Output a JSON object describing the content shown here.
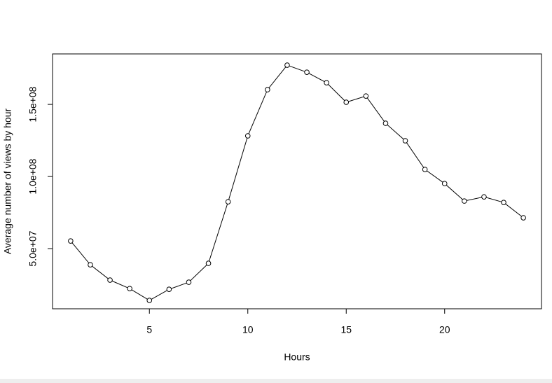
{
  "chart_data": {
    "type": "line",
    "xlabel": "Hours",
    "ylabel": "Average number of views by hour",
    "x": [
      1,
      2,
      3,
      4,
      5,
      6,
      7,
      8,
      9,
      10,
      11,
      12,
      13,
      14,
      15,
      16,
      17,
      18,
      19,
      20,
      21,
      22,
      23,
      24
    ],
    "values": [
      55300000,
      38800000,
      28200000,
      22300000,
      14100000,
      21800000,
      26700000,
      39800000,
      82500000,
      128200000,
      160200000,
      177200000,
      172300000,
      165000000,
      151500000,
      155800000,
      136900000,
      124800000,
      104900000,
      95100000,
      83000000,
      85900000,
      82000000,
      71400000
    ],
    "color": "#000000",
    "xlim": [
      0.08,
      24.92
    ],
    "xticks": [
      5,
      10,
      15,
      20
    ],
    "ylim": [
      8300000,
      185000000
    ],
    "yticks": [
      {
        "value": 50000000,
        "label": "5.0e+07"
      },
      {
        "value": 100000000,
        "label": "1.0e+08"
      },
      {
        "value": 150000000,
        "label": "1.5e+08"
      }
    ]
  }
}
